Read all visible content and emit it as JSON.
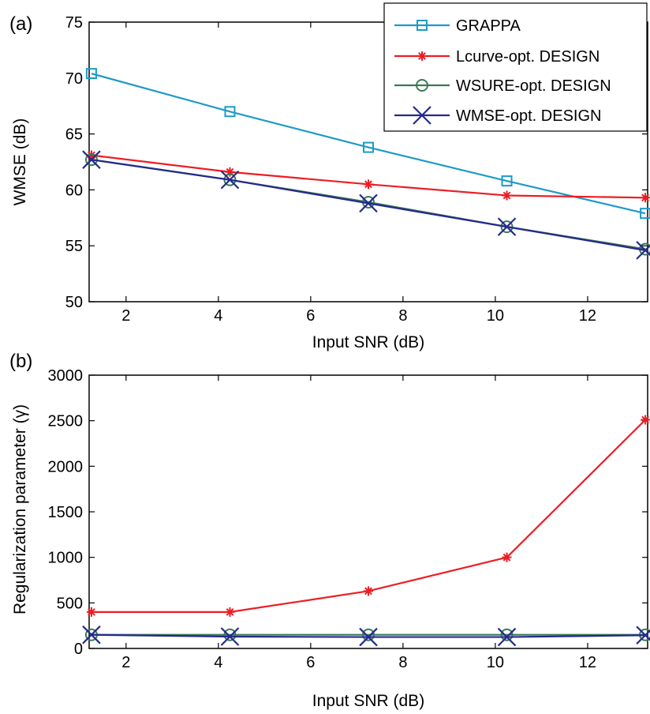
{
  "chart_data": [
    {
      "type": "line",
      "panel_label": "(a)",
      "title": "",
      "xlabel": "Input SNR (dB)",
      "ylabel": "WMSE (dB)",
      "xlim": [
        1.2,
        13.3
      ],
      "ylim": [
        50,
        75
      ],
      "x_ticks": [
        2,
        4,
        6,
        8,
        10,
        12
      ],
      "y_ticks": [
        50,
        55,
        60,
        65,
        70,
        75
      ],
      "grid": false,
      "legend_position": "top-right",
      "x": [
        1.25,
        4.25,
        7.25,
        10.25,
        13.25
      ],
      "series": [
        {
          "name": "GRAPPA",
          "color": "#1e9ac8",
          "marker": "square",
          "values": [
            70.4,
            67.0,
            63.8,
            60.8,
            57.9
          ]
        },
        {
          "name": "Lcurve-opt. DESIGN",
          "color": "#ee1c24",
          "marker": "asterisk",
          "values": [
            63.1,
            61.6,
            60.5,
            59.5,
            59.3
          ]
        },
        {
          "name": "WSURE-opt. DESIGN",
          "color": "#3c7a58",
          "marker": "circle",
          "values": [
            62.7,
            60.9,
            58.9,
            56.7,
            54.7
          ]
        },
        {
          "name": "WMSE-opt. DESIGN",
          "color": "#242a8c",
          "marker": "cross",
          "values": [
            62.7,
            60.9,
            58.8,
            56.7,
            54.6
          ]
        }
      ]
    },
    {
      "type": "line",
      "panel_label": "(b)",
      "title": "",
      "xlabel": "Input SNR (dB)",
      "ylabel": "Regularization parameter (γ)",
      "xlim": [
        1.2,
        13.3
      ],
      "ylim": [
        0,
        3000
      ],
      "x_ticks": [
        2,
        4,
        6,
        8,
        10,
        12
      ],
      "y_ticks": [
        0,
        500,
        1000,
        1500,
        2000,
        2500,
        3000
      ],
      "grid": false,
      "x": [
        1.25,
        4.25,
        7.25,
        10.25,
        13.25
      ],
      "series": [
        {
          "name": "Lcurve-opt. DESIGN",
          "color": "#ee1c24",
          "marker": "asterisk",
          "values": [
            400,
            400,
            630,
            1000,
            2510
          ]
        },
        {
          "name": "WSURE-opt. DESIGN",
          "color": "#3c7a58",
          "marker": "circle",
          "values": [
            150,
            150,
            150,
            150,
            150
          ]
        },
        {
          "name": "WMSE-opt. DESIGN",
          "color": "#242a8c",
          "marker": "cross",
          "values": [
            150,
            130,
            125,
            125,
            145
          ]
        }
      ]
    }
  ]
}
